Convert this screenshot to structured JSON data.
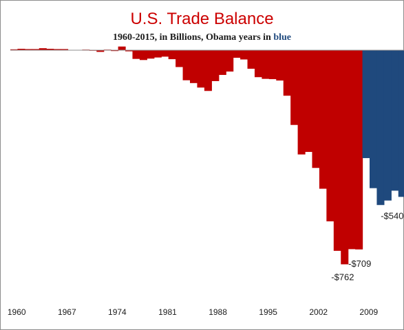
{
  "chart_data": {
    "type": "bar",
    "title": "U.S. Trade Balance",
    "subtitle_prefix": "1960-2015, in Billions, Obama years in ",
    "subtitle_highlight": "blue",
    "xlabel": "",
    "ylabel": "",
    "ylim": [
      -800,
      0
    ],
    "grid": false,
    "legend": "none",
    "x_tick_labels": [
      "1960",
      "1967",
      "1974",
      "1981",
      "1988",
      "1995",
      "2002",
      "2009"
    ],
    "colors": {
      "default": "#c00000",
      "highlight": "#1f497d",
      "axis": "#8c8c8c"
    },
    "highlight_from_year": 2009,
    "years": [
      1960,
      1961,
      1962,
      1963,
      1964,
      1965,
      1966,
      1967,
      1968,
      1969,
      1970,
      1971,
      1972,
      1973,
      1974,
      1975,
      1976,
      1977,
      1978,
      1979,
      1980,
      1981,
      1982,
      1983,
      1984,
      1985,
      1986,
      1987,
      1988,
      1989,
      1990,
      1991,
      1992,
      1993,
      1994,
      1995,
      1996,
      1997,
      1998,
      1999,
      2000,
      2001,
      2002,
      2003,
      2004,
      2005,
      2006,
      2007,
      2008,
      2009,
      2010,
      2011,
      2012,
      2013,
      2014,
      2015
    ],
    "values": [
      3,
      5,
      4,
      4,
      7,
      5,
      4,
      4,
      1,
      1,
      2,
      -1,
      -6,
      2,
      -3,
      13,
      -4,
      -31,
      -35,
      -30,
      -26,
      -23,
      -32,
      -60,
      -107,
      -117,
      -133,
      -145,
      -110,
      -88,
      -76,
      -27,
      -33,
      -66,
      -96,
      -102,
      -103,
      -108,
      -162,
      -266,
      -371,
      -362,
      -419,
      -493,
      -609,
      -714,
      -762,
      -708,
      -709,
      -384,
      -491,
      -551,
      -535,
      -500,
      -522,
      -540
    ],
    "annotations": [
      {
        "year": 2006,
        "text": "-$762"
      },
      {
        "year": 2008,
        "text": "-$709"
      },
      {
        "year": 2015,
        "text": "-$540"
      }
    ]
  }
}
